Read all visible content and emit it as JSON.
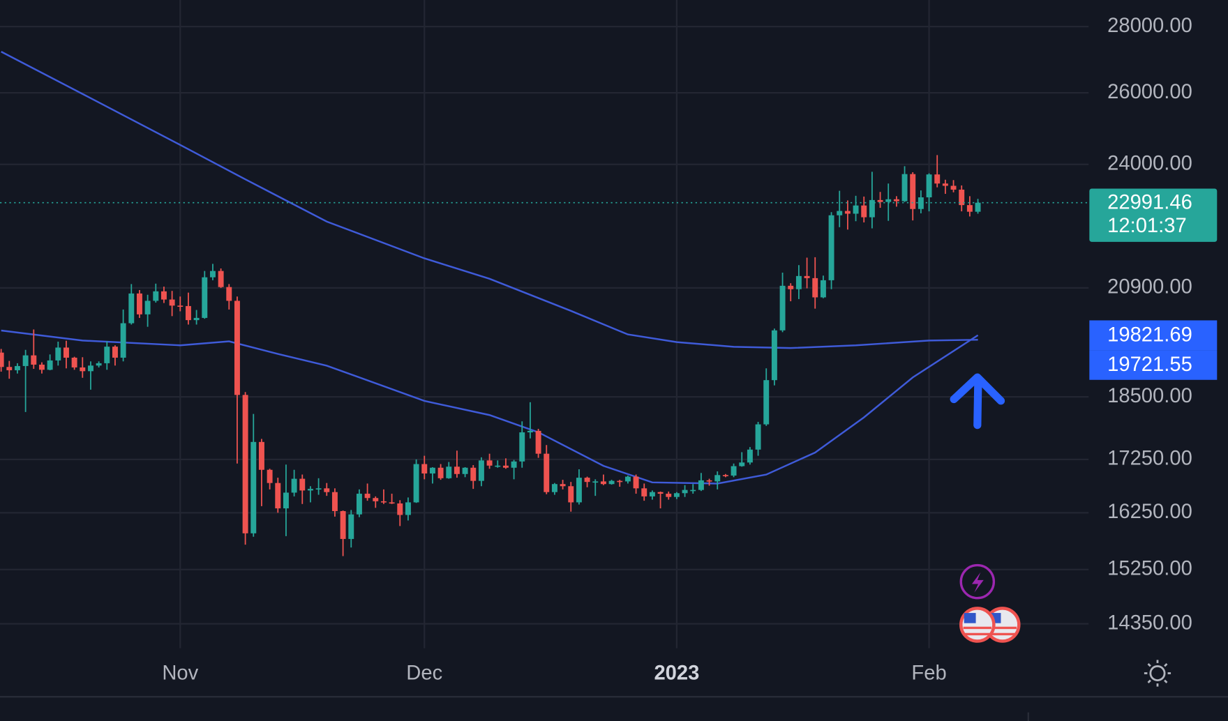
{
  "chart_data": {
    "type": "candlestick",
    "log_scale": true,
    "grid": true,
    "up_color": "#26a69a",
    "down_color": "#ef5350",
    "xlim": [
      -0.14,
      133.6
    ],
    "ylim": [
      13964,
      28847
    ],
    "xticks": [
      {
        "value": 22,
        "label": "Nov"
      },
      {
        "value": 52,
        "label": "Dec"
      },
      {
        "value": 83,
        "label": "2023"
      },
      {
        "value": 114,
        "label": "Feb"
      }
    ],
    "yticks": [
      {
        "value": 14350,
        "label": "14350.00"
      },
      {
        "value": 15250,
        "label": "15250.00"
      },
      {
        "value": 16250,
        "label": "16250.00"
      },
      {
        "value": 17250,
        "label": "17250.00"
      },
      {
        "value": 18500,
        "label": "18500.00"
      },
      {
        "value": 20900,
        "label": "20900.00"
      },
      {
        "value": 24000,
        "label": "24000.00"
      },
      {
        "value": 26000,
        "label": "26000.00"
      },
      {
        "value": 28000,
        "label": "28000.00"
      }
    ],
    "open": [
      19440,
      19130,
      19060,
      19150,
      19380,
      19180,
      19070,
      19270,
      19550,
      19330,
      19120,
      19040,
      19160,
      19210,
      19570,
      19330,
      20090,
      20770,
      20290,
      20600,
      20820,
      20630,
      20490,
      20480,
      20160,
      20210,
      21150,
      21300,
      20920,
      20600,
      18540,
      15880,
      17590,
      17050,
      16800,
      16330,
      16620,
      16880,
      16660,
      16690,
      16700,
      16630,
      16280,
      15780,
      16220,
      16600,
      16520,
      16460,
      16440,
      16420,
      16210,
      16440,
      17160,
      16980,
      17090,
      16890,
      17110,
      16970,
      17090,
      16840,
      17230,
      17130,
      17130,
      17090,
      17210,
      17780,
      17810,
      17360,
      16630,
      16780,
      16740,
      16440,
      16900,
      16820,
      16830,
      16780,
      16840,
      16830,
      16920,
      16700,
      16550,
      16630,
      16600,
      16540,
      16610,
      16670,
      16670,
      16850,
      16830,
      16950,
      16940,
      17120,
      17190,
      17440,
      17940,
      18850,
      19930,
      20950,
      20870,
      21180,
      21130,
      20680,
      21080,
      22670,
      22780,
      22710,
      22920,
      22620,
      23060,
      23010,
      23080,
      23030,
      23740,
      22830,
      23130,
      23730,
      23490,
      23430,
      23330,
      22930,
      22760
    ],
    "high": [
      19520,
      19260,
      19210,
      19500,
      19950,
      19230,
      19400,
      19680,
      19700,
      19350,
      19340,
      19250,
      19250,
      19690,
      19600,
      20400,
      20990,
      20850,
      20740,
      21000,
      20930,
      20830,
      20700,
      20790,
      20390,
      21300,
      21470,
      21360,
      20990,
      20700,
      18600,
      18150,
      17650,
      17070,
      16900,
      17150,
      17050,
      16960,
      16740,
      16890,
      16800,
      16700,
      16290,
      16300,
      16680,
      16790,
      16550,
      16680,
      16600,
      16480,
      16530,
      17250,
      17320,
      17100,
      17160,
      17200,
      17420,
      17100,
      17140,
      17290,
      17360,
      17230,
      17270,
      17240,
      18000,
      18390,
      17850,
      17530,
      16800,
      16860,
      16820,
      17060,
      16920,
      16870,
      16960,
      16860,
      16860,
      16940,
      16960,
      16790,
      16660,
      16640,
      16640,
      16630,
      16760,
      16780,
      16990,
      16880,
      17020,
      16970,
      17170,
      17390,
      17490,
      17990,
      19100,
      19970,
      21260,
      21010,
      21440,
      21620,
      21630,
      21190,
      22750,
      23300,
      23050,
      23170,
      23150,
      23800,
      23270,
      23490,
      23160,
      23950,
      23790,
      23310,
      23760,
      24250,
      23590,
      23580,
      23440,
      23160,
      23090
    ],
    "low": [
      19030,
      18880,
      18990,
      18190,
      19090,
      18990,
      19060,
      19160,
      19100,
      19070,
      18900,
      18650,
      19120,
      19070,
      19160,
      19250,
      20060,
      20210,
      20010,
      20560,
      20550,
      20250,
      20360,
      20060,
      20060,
      20190,
      21080,
      20900,
      20400,
      17170,
      15680,
      15820,
      16370,
      16680,
      16250,
      15830,
      16550,
      16410,
      16440,
      16580,
      16560,
      16180,
      15480,
      15630,
      16170,
      16470,
      16340,
      16410,
      16410,
      16010,
      16110,
      16430,
      16870,
      16790,
      16860,
      16880,
      16900,
      16910,
      16690,
      16740,
      17070,
      17090,
      17070,
      16870,
      17090,
      17660,
      17280,
      16590,
      16580,
      16680,
      16270,
      16400,
      16720,
      16560,
      16760,
      16770,
      16730,
      16790,
      16600,
      16470,
      16490,
      16330,
      16490,
      16500,
      16540,
      16600,
      16650,
      16750,
      16680,
      16910,
      16910,
      17110,
      17150,
      17320,
      17910,
      18740,
      19890,
      20590,
      20640,
      20890,
      20420,
      20660,
      20870,
      22370,
      22310,
      22520,
      22490,
      22340,
      22860,
      22530,
      22890,
      23010,
      22540,
      22720,
      22770,
      23390,
      23220,
      23260,
      22770,
      22640,
      22710
    ],
    "close": [
      19130,
      19060,
      19150,
      19380,
      19180,
      19070,
      19270,
      19550,
      19330,
      19120,
      19040,
      19160,
      19210,
      19570,
      19330,
      20090,
      20770,
      20290,
      20600,
      20820,
      20630,
      20490,
      20480,
      20160,
      20210,
      21150,
      21300,
      20920,
      20600,
      18540,
      15880,
      17590,
      17050,
      16800,
      16330,
      16620,
      16880,
      16660,
      16690,
      16700,
      16630,
      16280,
      15780,
      16220,
      16600,
      16520,
      16460,
      16440,
      16420,
      16210,
      16440,
      17160,
      16980,
      17090,
      16890,
      17110,
      16970,
      17090,
      16840,
      17230,
      17130,
      17130,
      17090,
      17210,
      17780,
      17810,
      17360,
      16630,
      16780,
      16740,
      16440,
      16900,
      16820,
      16830,
      16780,
      16840,
      16830,
      16920,
      16700,
      16550,
      16630,
      16600,
      16540,
      16610,
      16670,
      16670,
      16850,
      16830,
      16950,
      16940,
      17120,
      17190,
      17440,
      17940,
      18850,
      19930,
      20950,
      20870,
      21180,
      21130,
      20680,
      21080,
      22670,
      22780,
      22710,
      22920,
      22620,
      23060,
      23010,
      23080,
      23030,
      23740,
      22830,
      23130,
      23730,
      23490,
      23430,
      23330,
      22930,
      22760,
      22991.46
    ],
    "countdown": "12:01:37",
    "lines": [
      {
        "color": "#3f5bd9",
        "label_color": "#2962ff",
        "x": [
          0,
          10,
          22,
          30,
          40,
          52,
          60,
          70,
          77,
          83,
          90,
          97,
          105,
          114,
          120
        ],
        "values": [
          27225,
          25967,
          24529,
          23601,
          22512,
          21603,
          21114,
          20370,
          19840,
          19670,
          19567,
          19540,
          19600,
          19705,
          19721.55
        ]
      },
      {
        "color": "#3f5bd9",
        "label_color": "#2962ff",
        "x": [
          0,
          10,
          22,
          28,
          34,
          40,
          52,
          60,
          66,
          74,
          80,
          88,
          94,
          100,
          106,
          112,
          120
        ],
        "values": [
          19927,
          19704,
          19600,
          19688,
          19412,
          19158,
          18418,
          18127,
          17782,
          17125,
          16811,
          16790,
          16960,
          17383,
          18080,
          18908,
          19821.69
        ]
      }
    ]
  }
}
